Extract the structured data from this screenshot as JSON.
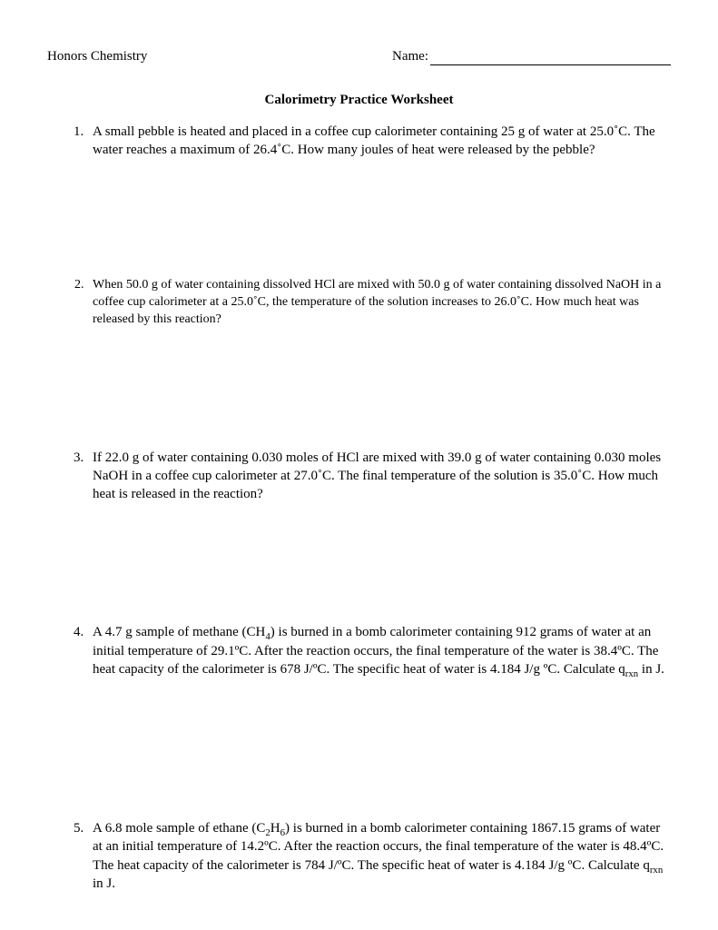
{
  "header": {
    "course": "Honors Chemistry",
    "name_label": "Name:"
  },
  "title": "Calorimetry Practice Worksheet",
  "questions": [
    {
      "text": "A small pebble is heated and placed in a coffee cup calorimeter containing 25 g of water at 25.0˚C.  The water reaches a maximum of 26.4˚C.  How many joules of heat were released by the pebble?"
    },
    {
      "text": "When 50.0 g of water containing dissolved HCl are mixed with 50.0 g of water containing dissolved NaOH in a coffee cup calorimeter at a 25.0˚C, the temperature of the solution increases to 26.0˚C.  How much heat was released by this reaction?"
    },
    {
      "text": "If 22.0 g of water containing 0.030 moles of HCl are mixed with 39.0 g of water containing 0.030 moles NaOH in a coffee cup calorimeter at 27.0˚C.  The final temperature of the solution is 35.0˚C.  How much heat is released in the reaction?"
    },
    {
      "pre": "A 4.7 g sample of methane (CH",
      "sub1": "4",
      "mid": ") is burned in a bomb calorimeter containing 912 grams of water at an initial temperature of 29.1ºC. After the reaction occurs, the final temperature of the water is 38.4ºC. The heat capacity of the calorimeter is 678 J/ºC. The specific heat of water is 4.184 J/g ºC. Calculate q",
      "sub2": "rxn",
      "post": " in J."
    },
    {
      "pre": "A 6.8 mole sample of ethane (C",
      "sub1": "2",
      "mid1": "H",
      "sub2": "6",
      "mid2": ") is burned in a bomb calorimeter containing 1867.15 grams of water at an initial temperature of 14.2ºC. After the reaction occurs, the final temperature of the water is 48.4ºC. The heat capacity of the calorimeter is 784 J/ºC. The specific heat of water is 4.184 J/g ºC. Calculate q",
      "sub3": "rxn",
      "post": " in J."
    }
  ]
}
